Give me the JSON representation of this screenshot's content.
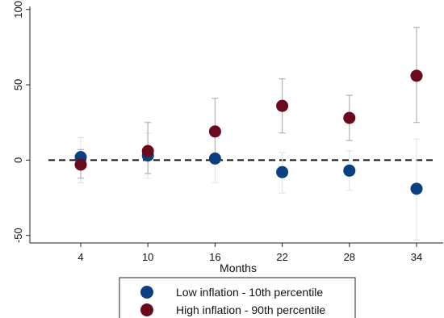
{
  "chart_data": {
    "type": "scatter",
    "title": "",
    "xlabel": "Months",
    "ylabel": "",
    "x": [
      4,
      10,
      16,
      22,
      28,
      34
    ],
    "x_ticks": [
      4,
      10,
      16,
      22,
      28,
      34
    ],
    "y_ticks": [
      -50,
      0,
      50,
      100
    ],
    "ylim": [
      -55,
      102
    ],
    "grid": false,
    "reference_line": {
      "y": 0,
      "style": "dashed"
    },
    "legend_position": "bottom",
    "series": [
      {
        "name": "Low inflation - 10th percentile",
        "color": "#0b3f7f",
        "errorbar_color": "#dce8ec",
        "values": [
          2,
          3,
          1,
          -8,
          -7,
          -19
        ],
        "ci_low": [
          -15,
          -12,
          -15,
          -22,
          -20,
          -53
        ],
        "ci_high": [
          15,
          18,
          17,
          5,
          6,
          14
        ]
      },
      {
        "name": "High inflation - 90th percentile",
        "color": "#6a0a1f",
        "errorbar_color": "#b2b2b2",
        "values": [
          -3,
          6,
          19,
          36,
          28,
          56
        ],
        "ci_low": [
          -12,
          -9,
          3,
          18,
          13,
          25
        ],
        "ci_high": [
          7,
          25,
          41,
          54,
          43,
          88
        ]
      }
    ]
  }
}
